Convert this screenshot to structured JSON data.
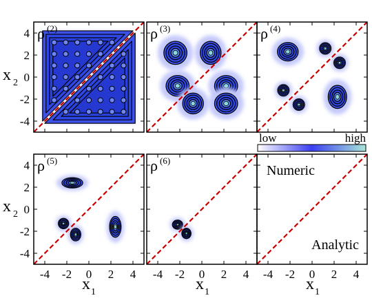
{
  "chart_data": {
    "type": "heatmap",
    "description_kind": "density-contour panels",
    "xlabel": "x",
    "xlabel_sub": "1",
    "ylabel": "x",
    "ylabel_sub": "2",
    "xlim": [
      -5,
      5
    ],
    "ylim": [
      -5,
      5
    ],
    "x_ticks": [
      "-4",
      "-2",
      "0",
      "2",
      "4"
    ],
    "y_ticks": [
      "4",
      "2",
      "0",
      "-2",
      "-4"
    ],
    "colorbar": {
      "low_label": "low",
      "high_label": "high",
      "colors": [
        "#ffffff",
        "#3b3ff0",
        "#a8e6d8"
      ]
    },
    "diagonal_color": "#cc0000",
    "panels": [
      {
        "label": "ρ",
        "sup": "(2)",
        "blobs": [
          {
            "x": -1.8,
            "y": 1.8,
            "sx": 2.0,
            "sy": 2.0,
            "amp": 0.9,
            "shape": "triangle-upper"
          },
          {
            "x": 1.8,
            "y": -1.8,
            "sx": 2.0,
            "sy": 2.0,
            "amp": 0.9,
            "shape": "triangle-lower"
          }
        ]
      },
      {
        "label": "ρ",
        "sup": "(3)",
        "blobs": [
          {
            "x": -2.4,
            "y": 2.2,
            "sx": 1.0,
            "sy": 1.0,
            "amp": 0.9
          },
          {
            "x": 0.8,
            "y": 2.2,
            "sx": 0.9,
            "sy": 1.0,
            "amp": 0.9
          },
          {
            "x": -2.2,
            "y": -0.8,
            "sx": 1.0,
            "sy": 0.9,
            "amp": 0.9
          },
          {
            "x": 2.2,
            "y": -0.8,
            "sx": 1.0,
            "sy": 0.9,
            "amp": 0.9
          },
          {
            "x": -0.8,
            "y": -2.4,
            "sx": 0.9,
            "sy": 0.9,
            "amp": 0.8
          },
          {
            "x": 2.2,
            "y": -2.4,
            "sx": 1.0,
            "sy": 0.9,
            "amp": 0.8
          }
        ]
      },
      {
        "label": "ρ",
        "sup": "(4)",
        "blobs": [
          {
            "x": -2.2,
            "y": 2.3,
            "sx": 0.9,
            "sy": 0.8,
            "amp": 0.9
          },
          {
            "x": 1.2,
            "y": 2.6,
            "sx": 0.5,
            "sy": 0.5,
            "amp": 0.8
          },
          {
            "x": 2.5,
            "y": 1.3,
            "sx": 0.5,
            "sy": 0.5,
            "amp": 0.8
          },
          {
            "x": -2.6,
            "y": -1.2,
            "sx": 0.5,
            "sy": 0.5,
            "amp": 0.8
          },
          {
            "x": -1.2,
            "y": -2.5,
            "sx": 0.5,
            "sy": 0.5,
            "amp": 0.8
          },
          {
            "x": 2.3,
            "y": -1.8,
            "sx": 0.8,
            "sy": 1.0,
            "amp": 0.9
          }
        ]
      },
      {
        "label": "ρ",
        "sup": "(5)",
        "blobs": [
          {
            "x": -1.5,
            "y": 2.4,
            "sx": 0.9,
            "sy": 0.45,
            "amp": 0.9
          },
          {
            "x": -2.3,
            "y": -1.3,
            "sx": 0.45,
            "sy": 0.45,
            "amp": 0.8
          },
          {
            "x": -1.2,
            "y": -2.3,
            "sx": 0.45,
            "sy": 0.55,
            "amp": 0.8
          },
          {
            "x": 2.4,
            "y": -1.6,
            "sx": 0.5,
            "sy": 0.9,
            "amp": 0.9
          }
        ]
      },
      {
        "label": "ρ",
        "sup": "(6)",
        "blobs": [
          {
            "x": -2.2,
            "y": -1.4,
            "sx": 0.45,
            "sy": 0.4,
            "amp": 0.8
          },
          {
            "x": -1.4,
            "y": -2.2,
            "sx": 0.4,
            "sy": 0.45,
            "amp": 0.8
          }
        ]
      },
      {
        "label": "",
        "sup": "",
        "blobs": []
      }
    ],
    "legend_texts": {
      "numeric": "Numeric",
      "analytic": "Analytic"
    }
  }
}
